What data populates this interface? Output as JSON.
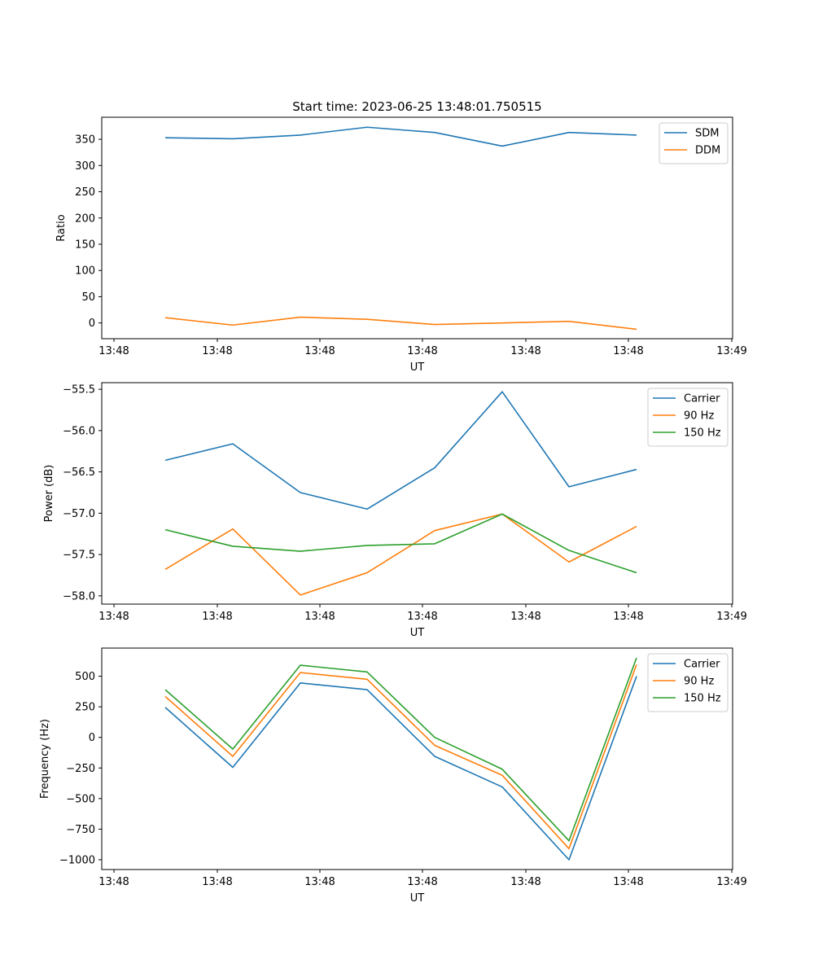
{
  "title": "Start time: 2023-06-25 13:48:01.750515",
  "colors": {
    "c0": "#1f77b4",
    "c1": "#ff7f0e",
    "c2": "#2ca02c"
  },
  "chart_data": [
    {
      "type": "line",
      "xlabel": "UT",
      "ylabel": "Ratio",
      "ylim": [
        -30,
        392
      ],
      "yticks": [
        0,
        50,
        100,
        150,
        200,
        250,
        300,
        350
      ],
      "xtick_labels": [
        "13:48",
        "13:48",
        "13:48",
        "13:48",
        "13:48",
        "13:48",
        "13:49"
      ],
      "legend": "top-right",
      "series": [
        {
          "name": "SDM",
          "color": "#1f77b4",
          "values": [
            353,
            351,
            358,
            373,
            363,
            337,
            363,
            358
          ]
        },
        {
          "name": "DDM",
          "color": "#ff7f0e",
          "values": [
            10,
            -4,
            11,
            7,
            -3,
            0,
            3,
            -12
          ]
        }
      ]
    },
    {
      "type": "line",
      "xlabel": "UT",
      "ylabel": "Power (dB)",
      "ylim": [
        -58.1,
        -55.42
      ],
      "yticks": [
        -58.0,
        -57.5,
        -57.0,
        -56.5,
        -56.0,
        -55.5
      ],
      "xtick_labels": [
        "13:48",
        "13:48",
        "13:48",
        "13:48",
        "13:48",
        "13:48",
        "13:49"
      ],
      "legend": "top-right",
      "series": [
        {
          "name": "Carrier",
          "color": "#1f77b4",
          "values": [
            -56.36,
            -56.16,
            -56.75,
            -56.95,
            -56.45,
            -55.53,
            -56.68,
            -56.47
          ]
        },
        {
          "name": "90 Hz",
          "color": "#ff7f0e",
          "values": [
            -57.68,
            -57.19,
            -57.99,
            -57.72,
            -57.21,
            -57.01,
            -57.59,
            -57.16
          ]
        },
        {
          "name": "150 Hz",
          "color": "#2ca02c",
          "values": [
            -57.2,
            -57.4,
            -57.46,
            -57.39,
            -57.37,
            -57.01,
            -57.45,
            -57.72
          ]
        }
      ]
    },
    {
      "type": "line",
      "xlabel": "UT",
      "ylabel": "Frequency (Hz)",
      "ylim": [
        -1080,
        730
      ],
      "yticks": [
        -1000,
        -750,
        -500,
        -250,
        0,
        250,
        500
      ],
      "xtick_labels": [
        "13:48",
        "13:48",
        "13:48",
        "13:48",
        "13:48",
        "13:48",
        "13:49"
      ],
      "legend": "top-right",
      "series": [
        {
          "name": "Carrier",
          "color": "#1f77b4",
          "values": [
            245,
            -245,
            445,
            390,
            -155,
            -405,
            -1000,
            500
          ]
        },
        {
          "name": "90 Hz",
          "color": "#ff7f0e",
          "values": [
            335,
            -155,
            530,
            475,
            -65,
            -310,
            -910,
            595
          ]
        },
        {
          "name": "150 Hz",
          "color": "#2ca02c",
          "values": [
            390,
            -95,
            590,
            535,
            0,
            -260,
            -845,
            650
          ]
        }
      ]
    }
  ]
}
